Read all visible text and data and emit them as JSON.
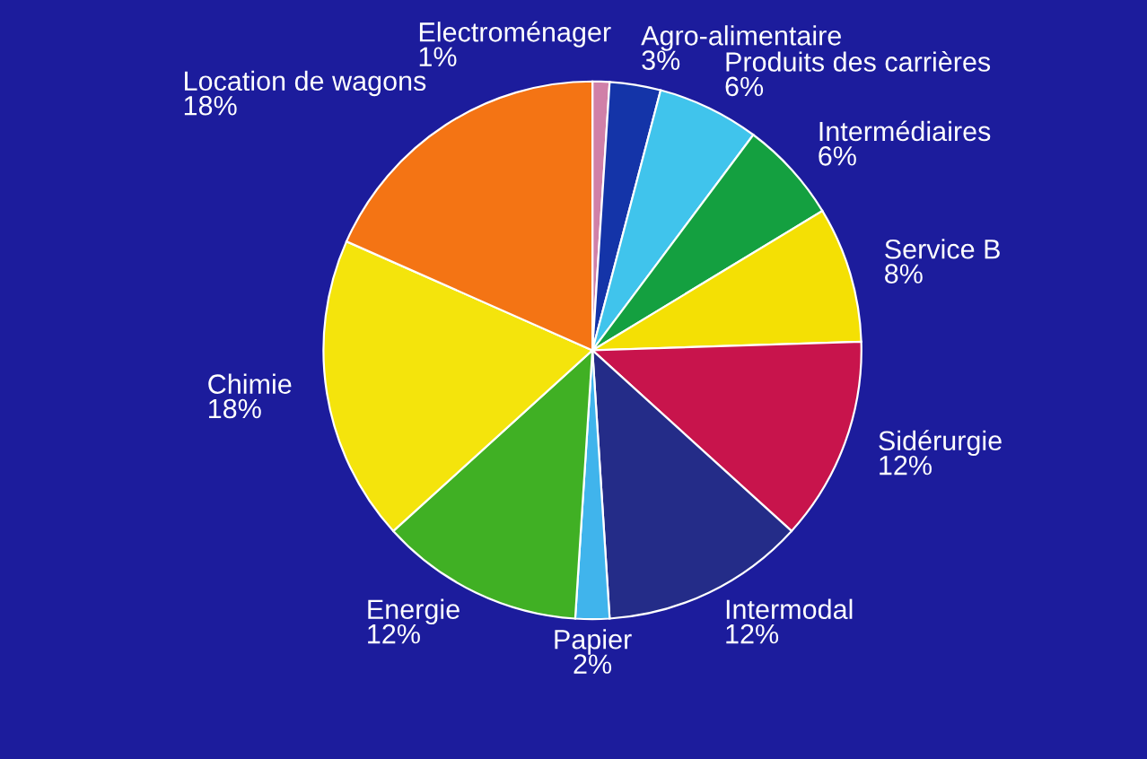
{
  "chart_data": {
    "type": "pie",
    "categories": [
      "Electroménager",
      "Agro-alimentaire",
      "Produits des carrières",
      "Intermédiaires",
      "Service B",
      "Sidérurgie",
      "Intermodal",
      "Papier",
      "Energie",
      "Chimie",
      "Location de wagons"
    ],
    "values": [
      1,
      3,
      6,
      6,
      8,
      12,
      12,
      2,
      12,
      18,
      18
    ],
    "value_labels": [
      "1%",
      "3%",
      "6%",
      "6%",
      "8%",
      "12%",
      "12%",
      "2%",
      "12%",
      "18%",
      "18%"
    ],
    "colors": [
      "#d080a8",
      "#1434a8",
      "#40c4ec",
      "#14a040",
      "#f4e004",
      "#c8144c",
      "#242c88",
      "#40b4ec",
      "#40b024",
      "#f4e40c",
      "#f47414"
    ],
    "legend": false
  }
}
